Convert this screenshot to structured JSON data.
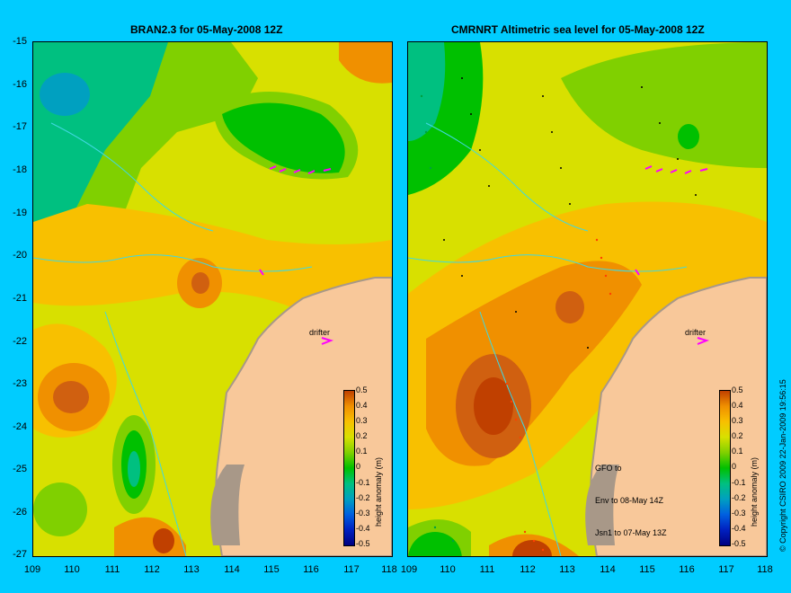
{
  "panels": [
    {
      "title": "BRAN2.3 for 05-May-2008 12Z"
    },
    {
      "title": "CMRNRT Altimetric sea level  for 05-May-2008 12Z"
    }
  ],
  "y_axis_labels": [
    "-15",
    "-16",
    "-17",
    "-18",
    "-19",
    "-20",
    "-21",
    "-22",
    "-23",
    "-24",
    "-25",
    "-26",
    "-27"
  ],
  "x_axis_labels": [
    "109",
    "110",
    "111",
    "112",
    "113",
    "114",
    "115",
    "116",
    "117",
    "118"
  ],
  "colorbar": {
    "label": "height anomaly (m)",
    "ticks": [
      "0.5",
      "0.4",
      "0.3",
      "0.2",
      "0.1",
      "0",
      "-0.1",
      "-0.2",
      "-0.3",
      "-0.4",
      "-0.5"
    ],
    "colors": [
      "#000080",
      "#0020c0",
      "#0060e0",
      "#00a0c0",
      "#00c080",
      "#00c000",
      "#80d000",
      "#d8e000",
      "#f8c000",
      "#f09000",
      "#c04000"
    ]
  },
  "drifter_label": "drifter",
  "satellite_note": [
    "GFO to",
    "Env to 08-May 14Z",
    "Jsn1 to 07-May 13Z"
  ],
  "copyright": "© Copyright CSIRO 2009   22-Jan-2009 19:56:15",
  "colors": {
    "background": "#00ccff",
    "land": "#f8c89a",
    "coast": "#a89888",
    "drifter": "#ff00ff",
    "isobath": "#40d8e0"
  }
}
